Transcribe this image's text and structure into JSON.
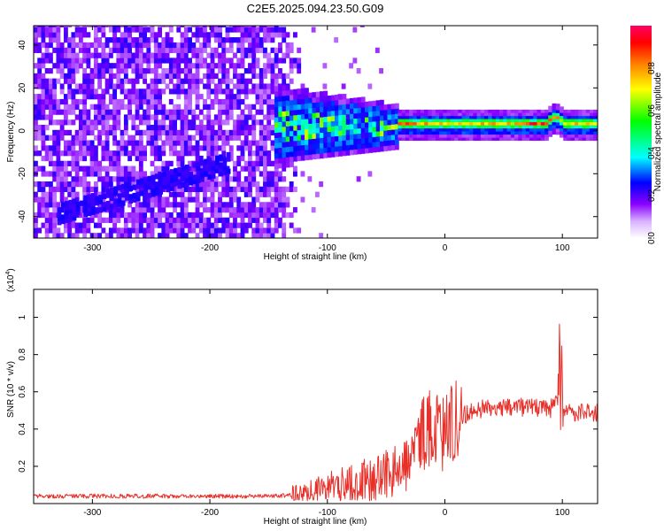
{
  "title": "C2E5.2025.094.23.50.G09",
  "chart_data": [
    {
      "type": "heatmap",
      "xlabel": "Height of straight line (km)",
      "ylabel": "Frequency (Hz)",
      "xlim": [
        -350,
        130
      ],
      "ylim": [
        -50,
        49
      ],
      "x_ticks": [
        -300,
        -200,
        -100,
        0,
        100
      ],
      "y_ticks": [
        -40,
        -20,
        0,
        20,
        40
      ],
      "colorbar": {
        "label": "Normalized spectral amplitude",
        "range": [
          0.0,
          1.0
        ],
        "ticks": [
          "0.0",
          "0.2",
          "0.4",
          "0.6",
          "0.8"
        ],
        "colors": [
          "#ffffff",
          "#8a00ff",
          "#0000ff",
          "#00ffff",
          "#00ff00",
          "#ffff00",
          "#ff8000",
          "#ff0000",
          "#ff0066"
        ]
      },
      "features": {
        "noise_region_x": [
          -350,
          -145
        ],
        "noise_fade_x": [
          -145,
          -120
        ],
        "burst_x": [
          -145,
          -40
        ],
        "burst_width_hz": [
          -12,
          12
        ],
        "signal_x": [
          -40,
          130
        ],
        "signal_freq_hz": 1.5,
        "diagonal_track": {
          "x": [
            -330,
            -185
          ],
          "freq_hz": [
            -40,
            -16
          ]
        }
      }
    },
    {
      "type": "line",
      "xlabel": "Height of straight line (km)",
      "ylabel": "SNR (10 * v/v)",
      "ylabel_exponent_base": "(x10",
      "ylabel_exponent_power": "4",
      "ylabel_exponent_close": ")",
      "xlim": [
        -350,
        130
      ],
      "ylim": [
        0,
        1.15
      ],
      "x_ticks": [
        -300,
        -200,
        -100,
        0,
        100
      ],
      "y_ticks": [
        0.2,
        0.4,
        0.6,
        0.8,
        1
      ],
      "series": [
        {
          "color": "#e8302a",
          "x": [
            -350,
            -300,
            -250,
            -200,
            -150,
            -120,
            -100,
            -80,
            -60,
            -40,
            -30,
            -25,
            -20,
            -10,
            0,
            10,
            20,
            40,
            60,
            80,
            90,
            95,
            98,
            100,
            102,
            110,
            130
          ],
          "y": [
            0.04,
            0.04,
            0.04,
            0.04,
            0.04,
            0.05,
            0.09,
            0.11,
            0.13,
            0.17,
            0.22,
            0.28,
            0.38,
            0.4,
            0.38,
            0.45,
            0.49,
            0.52,
            0.52,
            0.51,
            0.51,
            0.55,
            0.4,
            0.48,
            0.49,
            0.49,
            0.49
          ]
        }
      ]
    }
  ]
}
